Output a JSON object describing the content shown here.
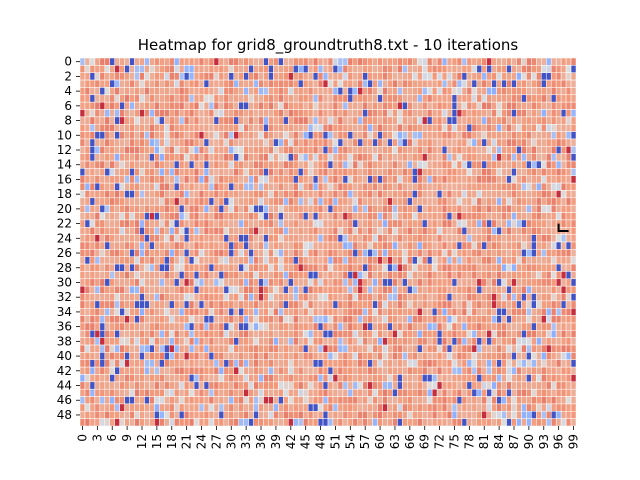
{
  "chart_data": {
    "type": "heatmap",
    "title": "Heatmap for grid8_groundtruth8.txt - 10 iterations",
    "xlabel": "",
    "ylabel": "",
    "n_cols": 100,
    "n_rows": 50,
    "x_tick_labels": [
      "0",
      "3",
      "6",
      "9",
      "12",
      "15",
      "18",
      "21",
      "24",
      "27",
      "30",
      "33",
      "36",
      "39",
      "42",
      "45",
      "48",
      "51",
      "54",
      "57",
      "60",
      "63",
      "66",
      "69",
      "72",
      "75",
      "78",
      "81",
      "84",
      "87",
      "90",
      "93",
      "96",
      "99"
    ],
    "y_tick_labels": [
      "0",
      "2",
      "4",
      "6",
      "8",
      "10",
      "12",
      "14",
      "16",
      "18",
      "20",
      "22",
      "24",
      "26",
      "28",
      "30",
      "32",
      "34",
      "36",
      "38",
      "40",
      "42",
      "44",
      "46",
      "48"
    ],
    "colormap": "coolwarm",
    "grid_lines": true,
    "grid_line_color": "#ffffff",
    "colorbar": false,
    "marked_path": {
      "color": "#000000",
      "cells": [
        [
          22,
          96
        ],
        [
          23,
          96
        ],
        [
          23,
          97
        ],
        [
          23,
          98
        ]
      ]
    }
  }
}
